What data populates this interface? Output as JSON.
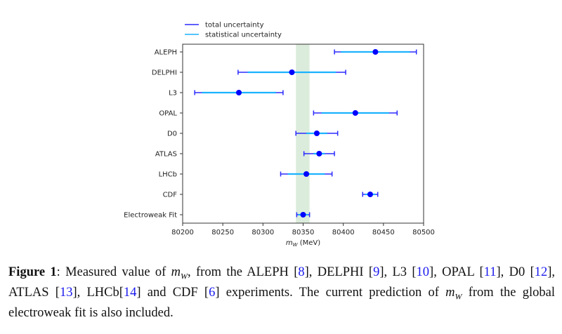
{
  "chart_data": {
    "type": "errorbar",
    "title": "",
    "xlabel": "m_W (MeV)",
    "xlabel_parts": {
      "main": "m",
      "sub": "W",
      "unit": " (MeV)"
    },
    "ylabel": "",
    "xlim": [
      80200,
      80500
    ],
    "xticks": [
      80200,
      80250,
      80300,
      80350,
      80400,
      80450,
      80500
    ],
    "grid": false,
    "legend": {
      "placement": "top-left above axes",
      "entries": [
        {
          "label": "total uncertainty",
          "color": "#2b2bff"
        },
        {
          "label": "statistical uncertainty",
          "color": "#1ab2ff"
        }
      ]
    },
    "band": {
      "range": [
        80341,
        80358
      ],
      "color": "#dcecdc"
    },
    "points": [
      {
        "label": "ALEPH",
        "value": 80440,
        "total": 51,
        "stat": 43
      },
      {
        "label": "DELPHI",
        "value": 80336,
        "total": 67,
        "stat": 55
      },
      {
        "label": "L3",
        "value": 80270,
        "total": 55,
        "stat": 46
      },
      {
        "label": "OPAL",
        "value": 80415,
        "total": 52,
        "stat": 42
      },
      {
        "label": "D0",
        "value": 80367,
        "total": 26,
        "stat": 13
      },
      {
        "label": "ATLAS",
        "value": 80370,
        "total": 19,
        "stat": 7
      },
      {
        "label": "LHCb",
        "value": 80354,
        "total": 32,
        "stat": 23
      },
      {
        "label": "CDF",
        "value": 80433.5,
        "total": 9.4,
        "stat": 6.4
      },
      {
        "label": "Electroweak Fit",
        "value": 80350,
        "total": 8,
        "stat": 6
      }
    ],
    "colors": {
      "total": "#2b2bff",
      "stat": "#1ab2ff",
      "marker": "#0000ff"
    }
  },
  "caption": {
    "label": "Figure 1",
    "parts": [
      {
        "t": ": Measured value of "
      },
      {
        "m": "m",
        "sub": "W"
      },
      {
        "t": ", from the ALEPH ["
      },
      {
        "r": "8"
      },
      {
        "t": "], DELPHI ["
      },
      {
        "r": "9"
      },
      {
        "t": "], L3 ["
      },
      {
        "r": "10"
      },
      {
        "t": "], OPAL ["
      },
      {
        "r": "11"
      },
      {
        "t": "], D0 ["
      },
      {
        "r": "12"
      },
      {
        "t": "], ATLAS ["
      },
      {
        "r": "13"
      },
      {
        "t": "], LHCb["
      },
      {
        "r": "14"
      },
      {
        "t": "] and CDF ["
      },
      {
        "r": "6"
      },
      {
        "t": "] experiments. The current prediction of "
      },
      {
        "m": "m",
        "sub": "W"
      },
      {
        "t": " from the global electroweak fit is also included."
      }
    ]
  }
}
